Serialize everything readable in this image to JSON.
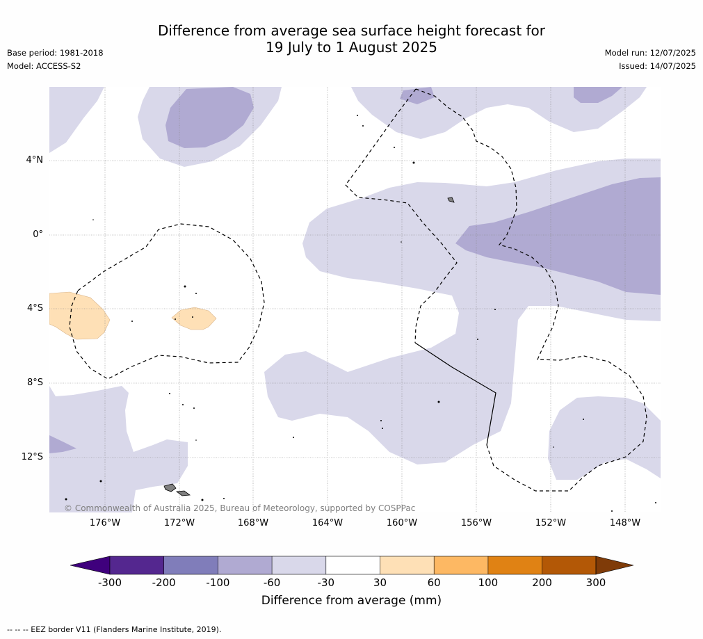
{
  "title_line1": "Difference from average sea surface height forecast for",
  "title_line2": "19 July to 1 August 2025",
  "base_period": "Base period: 1981-2018",
  "model": "Model: ACCESS-S2",
  "model_run": "Model run: 12/07/2025",
  "issued": "Issued: 14/07/2025",
  "copyright": "© Commonwealth of Australia 2025, Bureau of Meteorology, supported by COSPPac",
  "lat_labels": [
    "4°N",
    "0°",
    "4°S",
    "8°S",
    "12°S"
  ],
  "lon_labels": [
    "176°W",
    "172°W",
    "168°W",
    "164°W",
    "160°W",
    "156°W",
    "152°W",
    "148°W"
  ],
  "colorbar": {
    "ticks": [
      "-300",
      "-200",
      "-100",
      "-60",
      "-30",
      "30",
      "60",
      "100",
      "200",
      "300"
    ],
    "label": "Difference from average (mm)",
    "colors": [
      "#3f007d",
      "#54278f",
      "#807dba",
      "#b0aad2",
      "#d9d8ea",
      "#ffffff",
      "#fee0b6",
      "#fdb863",
      "#e08214",
      "#b35806",
      "#7f3b08"
    ]
  },
  "footnote": "--  --  -- EEZ border V11 (Flanders Marine Institute, 2019)."
}
